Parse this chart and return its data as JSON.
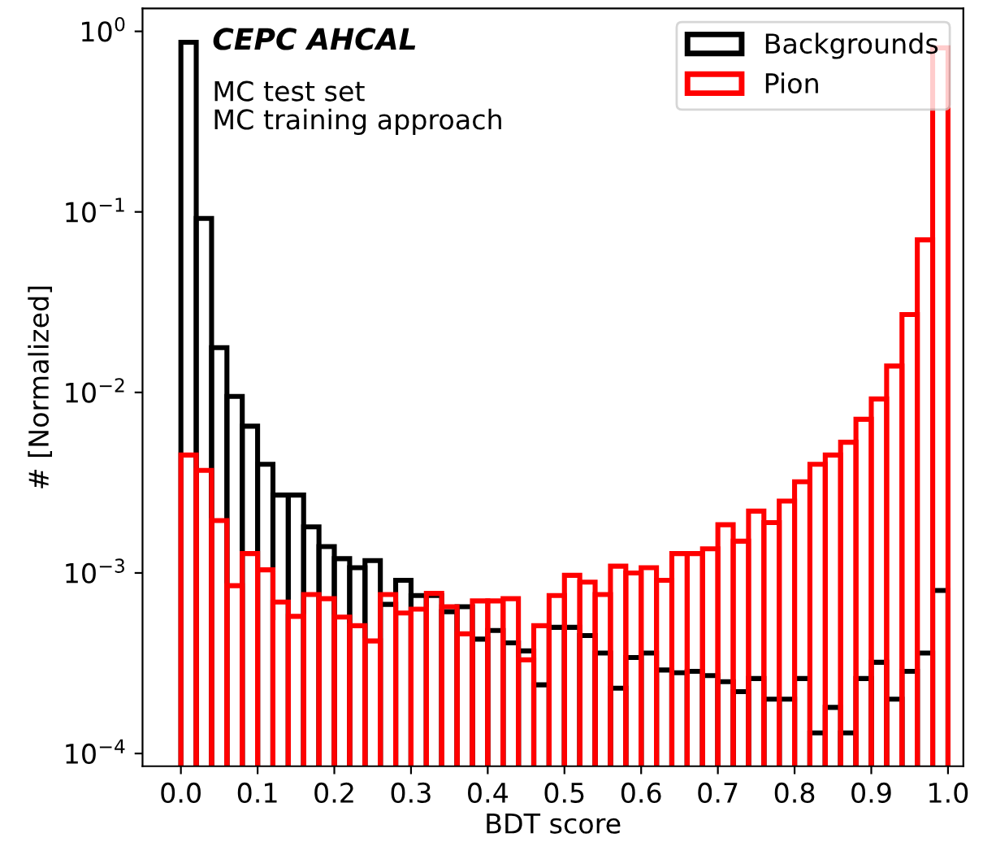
{
  "chart_data": {
    "type": "histogram",
    "xlabel": "BDT score",
    "ylabel": "# [Normalized]",
    "bins": [
      0.0,
      0.02,
      0.04,
      0.06,
      0.08,
      0.1,
      0.12,
      0.14,
      0.16,
      0.18,
      0.2,
      0.22,
      0.24,
      0.26,
      0.28,
      0.3,
      0.32,
      0.34,
      0.36,
      0.38,
      0.4,
      0.42,
      0.44,
      0.46,
      0.48,
      0.5,
      0.52,
      0.54,
      0.56,
      0.58,
      0.6,
      0.62,
      0.64,
      0.66,
      0.68,
      0.7,
      0.72,
      0.74,
      0.76,
      0.78,
      0.8,
      0.82,
      0.84,
      0.86,
      0.88,
      0.9,
      0.92,
      0.94,
      0.96,
      0.98,
      1.0
    ],
    "series": [
      {
        "name": "Backgrounds",
        "color": "#000000",
        "values": [
          0.87,
          0.092,
          0.0177,
          0.0095,
          0.0065,
          0.004,
          0.0027,
          0.0027,
          0.0018,
          0.0014,
          0.0012,
          0.00107,
          0.00117,
          0.00067,
          0.00091,
          0.00075,
          0.00075,
          0.00061,
          0.00065,
          0.00043,
          0.00048,
          0.00041,
          0.00037,
          0.00024,
          0.0005,
          0.0005,
          0.00045,
          0.00036,
          0.00023,
          0.00034,
          0.00036,
          0.00029,
          0.00028,
          0.000285,
          0.00027,
          0.00025,
          0.00022,
          0.00026,
          0.0002,
          0.0002,
          0.00026,
          0.00013,
          0.00018,
          0.00013,
          0.00026,
          0.00032,
          0.0002,
          0.000285,
          0.00036,
          0.0008
        ]
      },
      {
        "name": "Pion",
        "color": "#ff0000",
        "values": [
          0.0045,
          0.0037,
          0.00195,
          0.00085,
          0.00128,
          0.00104,
          0.00069,
          0.000575,
          0.00076,
          0.00072,
          0.00057,
          0.00051,
          0.00042,
          0.00076,
          0.0006,
          0.00063,
          0.00077,
          0.00065,
          0.00046,
          0.0007,
          0.0007,
          0.00072,
          0.00033,
          0.00051,
          0.00075,
          0.00097,
          0.00089,
          0.00076,
          0.00109,
          0.001,
          0.00107,
          0.00091,
          0.00128,
          0.00128,
          0.00136,
          0.00185,
          0.0015,
          0.0022,
          0.0019,
          0.0025,
          0.0032,
          0.004,
          0.0045,
          0.0053,
          0.0071,
          0.0092,
          0.014,
          0.027,
          0.07,
          0.81
        ]
      }
    ],
    "log": "y",
    "xlim": [
      -0.05,
      1.02
    ],
    "ylim": [
      8.5e-05,
      1.34
    ],
    "xticks": [
      {
        "value": 0.0,
        "label": "0.0"
      },
      0.1,
      0.2,
      0.3,
      0.4,
      0.5,
      0.6,
      0.7,
      0.8,
      0.9,
      {
        "value": 1.0,
        "label": "1.0"
      }
    ],
    "yticks": [
      {
        "value": 0.0001,
        "label": "10$^{−4}$"
      },
      {
        "value": 0.001,
        "label": "10$^{−3}$"
      },
      {
        "value": 0.01,
        "label": "10$^{−2}$"
      },
      {
        "value": 0.1,
        "label": "10$^{−1}$"
      },
      {
        "value": 1,
        "label": "10$^{0}$"
      }
    ],
    "grid": false,
    "legend": "top right",
    "annotations": [
      "CEPC AHCAL",
      "MC test set\nMC training approach"
    ]
  }
}
